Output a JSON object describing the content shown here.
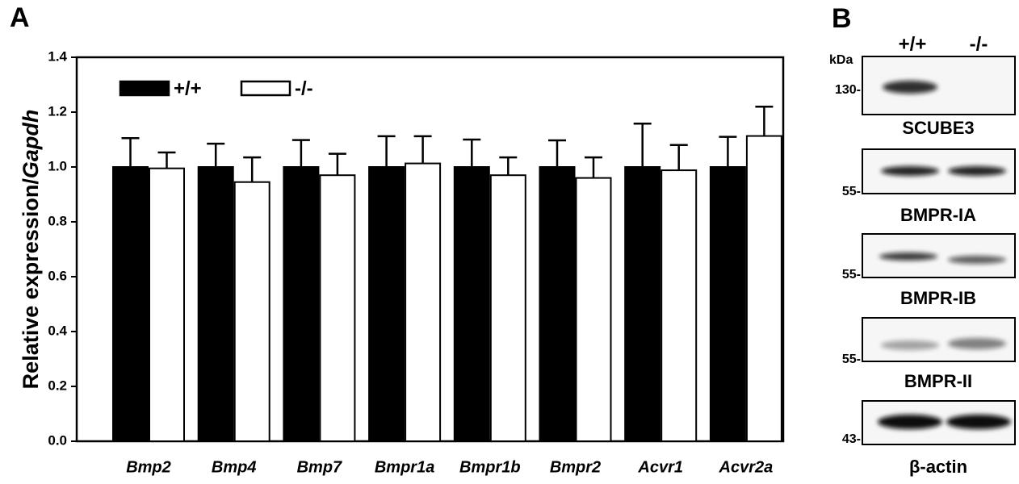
{
  "chart_data": {
    "type": "bar",
    "panel": "A",
    "ylabel": [
      "Relative expression/",
      "Gapdh"
    ],
    "categories": [
      "Bmp2",
      "Bmp4",
      "Bmp7",
      "Bmpr1a",
      "Bmpr1b",
      "Bmpr2",
      "Acvr1",
      "Acvr2a"
    ],
    "series": [
      {
        "name": "+/+",
        "color": "#000000",
        "values": [
          1.0,
          1.0,
          1.0,
          1.0,
          1.0,
          1.0,
          1.0,
          1.0
        ],
        "errors": [
          0.105,
          0.085,
          0.098,
          0.112,
          0.1,
          0.097,
          0.158,
          0.11
        ]
      },
      {
        "name": "-/-",
        "color": "#ffffff",
        "values": [
          0.995,
          0.945,
          0.97,
          1.013,
          0.97,
          0.96,
          0.988,
          1.113
        ],
        "errors": [
          0.058,
          0.09,
          0.078,
          0.099,
          0.065,
          0.075,
          0.092,
          0.107
        ]
      }
    ],
    "ylim": [
      0,
      1.4
    ],
    "yticks": [
      {
        "value": 0,
        "label": "0.0"
      },
      {
        "value": 0.2,
        "label": "0.2"
      },
      {
        "value": 0.4,
        "label": "0.4"
      },
      {
        "value": 0.6,
        "label": "0.6"
      },
      {
        "value": 0.8,
        "label": "0.8"
      },
      {
        "value": 1,
        "label": "1.0"
      },
      {
        "value": 1.2,
        "label": "1.2"
      },
      {
        "value": 1.4,
        "label": "1.4"
      }
    ],
    "legend": "top-left"
  },
  "blot": {
    "panel": "B",
    "kda": "kDa",
    "lanes": [
      "+/+",
      "-/-"
    ],
    "bands": [
      {
        "name": "SCUBE3",
        "marker": "130-"
      },
      {
        "name": "BMPR-IA",
        "marker": "55-"
      },
      {
        "name": "BMPR-IB",
        "marker": "55-"
      },
      {
        "name": "BMPR-II",
        "marker": "55-"
      },
      {
        "name": "β-actin",
        "marker": "43-"
      }
    ]
  }
}
